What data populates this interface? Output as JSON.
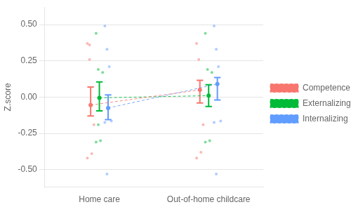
{
  "chart_data": {
    "type": "errorbar",
    "categories": [
      "Home care",
      "Out-of-home childcare"
    ],
    "series": [
      {
        "name": "Competence",
        "color": "#F8766D",
        "values": [
          -0.055,
          0.05
        ],
        "ci_lower": [
          -0.13,
          -0.04
        ],
        "ci_upper": [
          0.07,
          0.115
        ],
        "points": [
          [
            0.37,
            0.26,
            -0.39,
            -0.19,
            -0.42,
            0.36
          ],
          [
            0.37,
            0.26,
            -0.38,
            -0.19,
            -0.42
          ]
        ]
      },
      {
        "name": "Externalizing",
        "color": "#00BA38",
        "values": [
          -0.005,
          0.01
        ],
        "ci_lower": [
          -0.095,
          -0.065
        ],
        "ci_upper": [
          0.105,
          0.085
        ],
        "points": [
          [
            0.44,
            0.19,
            -0.3,
            0.17,
            -0.31,
            -0.19
          ],
          [
            0.44,
            0.19,
            -0.3,
            0.17,
            -0.31
          ]
        ]
      },
      {
        "name": "Internalizing",
        "color": "#619CFF",
        "values": [
          -0.075,
          0.09
        ],
        "ci_lower": [
          -0.155,
          -0.02
        ],
        "ci_upper": [
          0.015,
          0.135
        ],
        "points": [
          [
            0.49,
            0.33,
            0.21,
            -0.165,
            -0.175,
            -0.53
          ],
          [
            0.49,
            0.33,
            0.21,
            -0.165,
            -0.175,
            -0.53
          ]
        ]
      }
    ],
    "ylabel": "Z.score",
    "ylim": [
      -0.62,
      0.62
    ],
    "yticks": [
      {
        "value": -0.5,
        "label": "-0.50"
      },
      {
        "value": -0.25,
        "label": "-0.25"
      },
      {
        "value": 0,
        "label": "0.00"
      },
      {
        "value": 0.25,
        "label": "0.25"
      },
      {
        "value": 0.5,
        "label": "0.50"
      }
    ],
    "grid": true,
    "legend": "right"
  }
}
